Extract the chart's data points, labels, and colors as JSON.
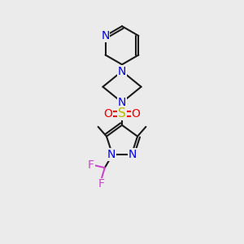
{
  "bg_color": "#ebebeb",
  "bond_color": "#1a1a1a",
  "N_color": "#0000ee",
  "O_color": "#ee0000",
  "S_color": "#bbbb00",
  "F_color": "#cc44cc",
  "lw": 1.5,
  "fig_width": 3.0,
  "fig_height": 3.0,
  "dpi": 100,
  "xlim": [
    0,
    10
  ],
  "ylim": [
    0,
    10
  ]
}
